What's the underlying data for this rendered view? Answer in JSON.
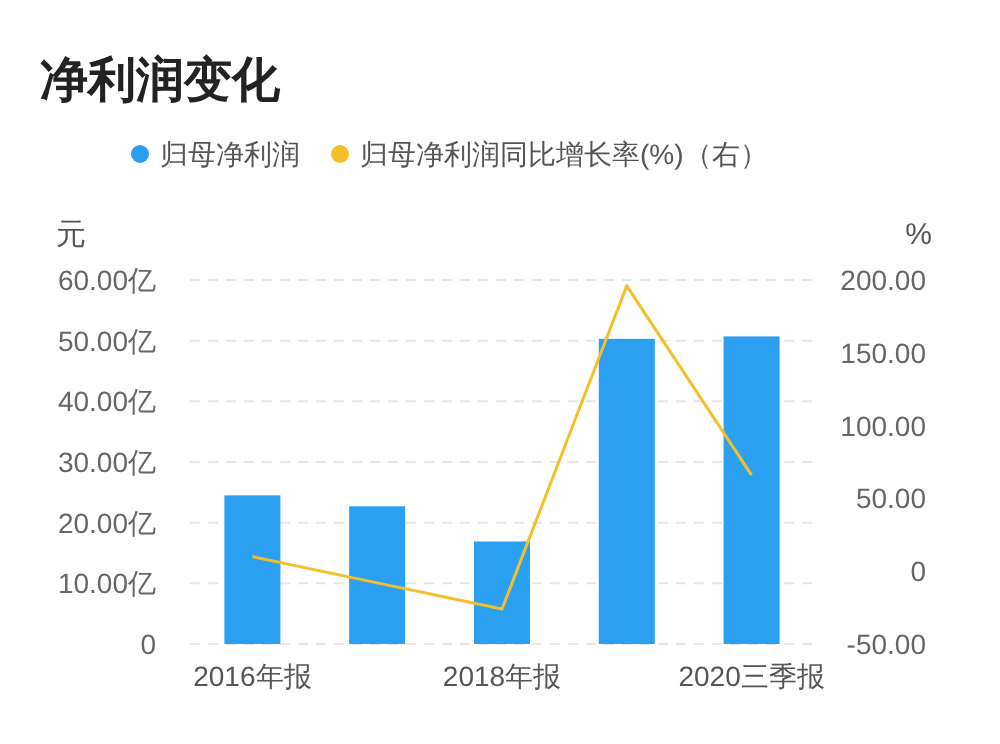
{
  "chart_data": {
    "type": "bar",
    "title": "净利润变化",
    "ylabel": "元",
    "y2label": "%",
    "categories": [
      "2016年报",
      null,
      "2018年报",
      null,
      "2020三季报"
    ],
    "series": [
      {
        "name": "归母净利润",
        "color": "#2b9ff0",
        "values": [
          24.5,
          22.7,
          16.9,
          50.3,
          50.7
        ]
      },
      {
        "name": "归母净利润同比增长率(%)（右）",
        "type": "line",
        "axis": "y2",
        "color": "#f5bf2a",
        "values": [
          10,
          -8,
          -26,
          196,
          66
        ]
      }
    ],
    "ylim": [
      0,
      60
    ],
    "yticks": [
      0,
      {
        "value": 10,
        "label": "10.00亿"
      },
      {
        "value": 20,
        "label": "20.00亿"
      },
      {
        "value": 30,
        "label": "30.00亿"
      },
      {
        "value": 40,
        "label": "40.00亿"
      },
      {
        "value": 50,
        "label": "50.00亿"
      },
      {
        "value": 60,
        "label": "60.00亿"
      }
    ],
    "y2lim": [
      -50,
      200
    ],
    "y2ticks": [
      {
        "value": -50,
        "label": "-50.00"
      },
      {
        "value": 50,
        "label": "50.00"
      },
      0,
      {
        "value": 100,
        "label": "100.00"
      },
      {
        "value": 150,
        "label": "150.00"
      },
      {
        "value": 200,
        "label": "200.00"
      }
    ],
    "grid": "y",
    "legend": "top",
    "marker": "none",
    "line_style": "solid"
  }
}
